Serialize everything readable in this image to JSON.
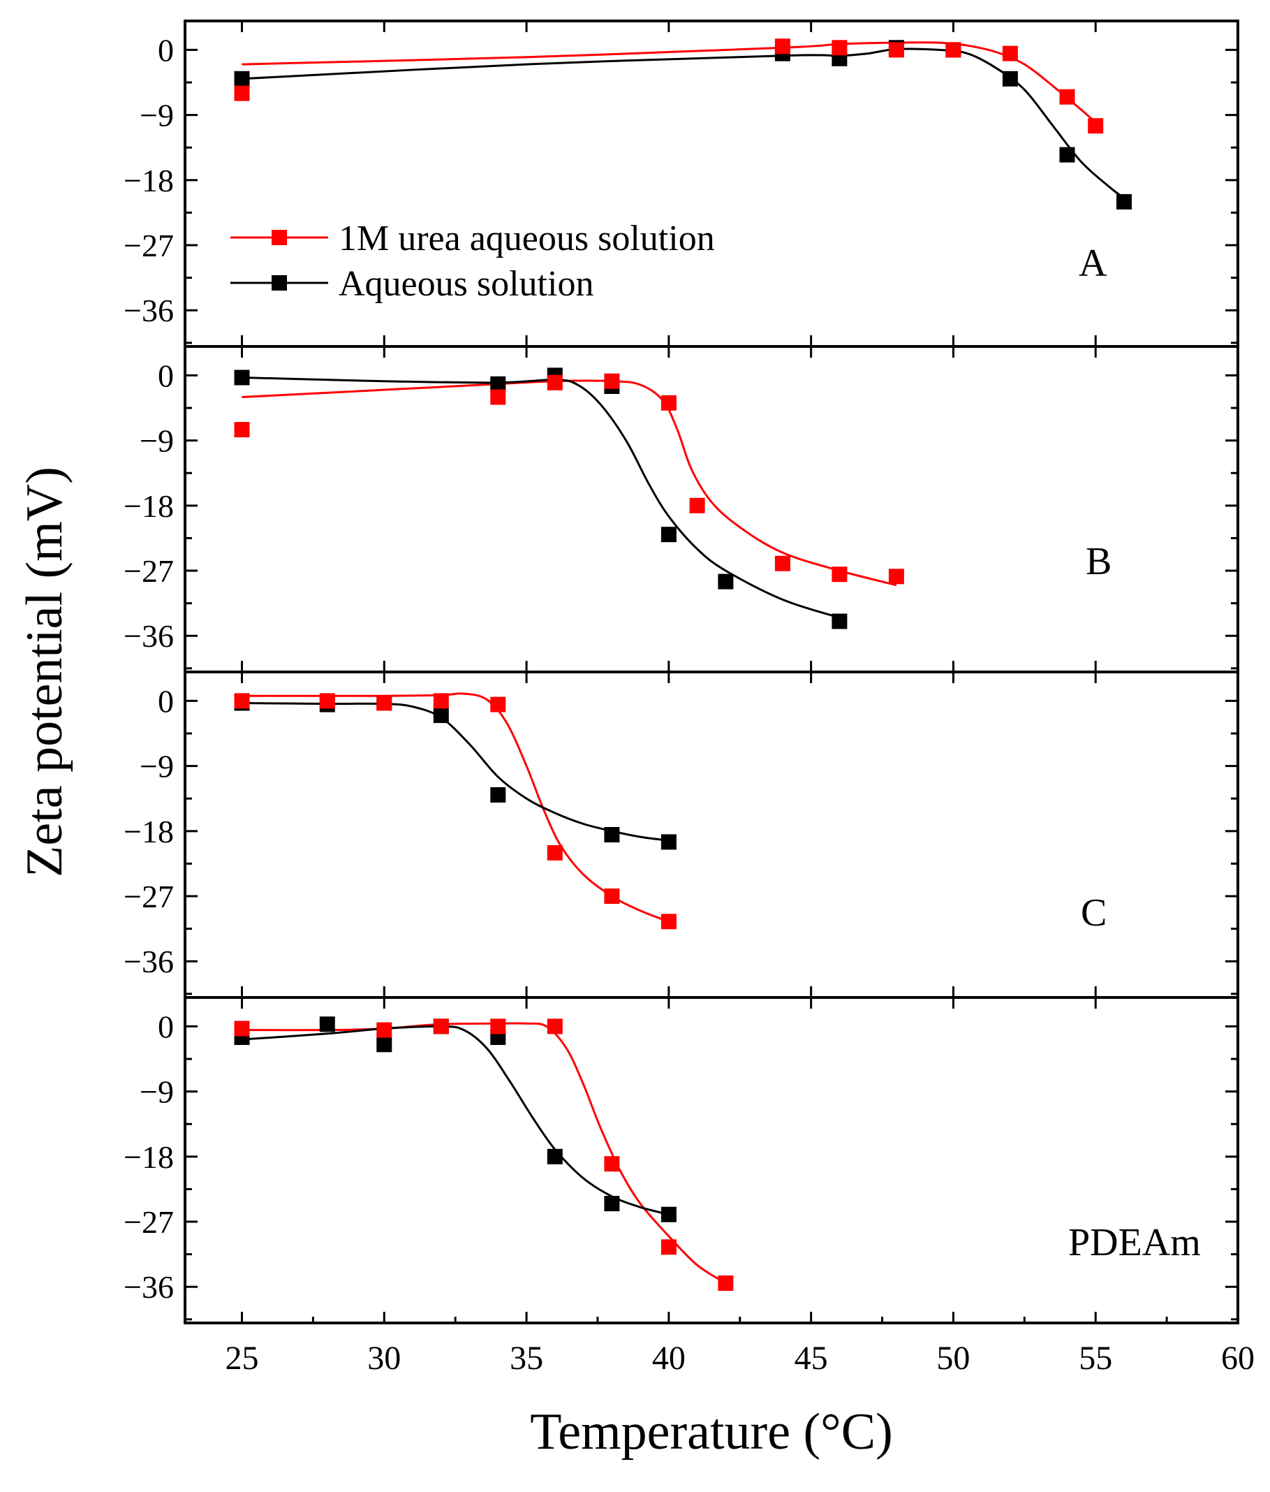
{
  "chart_data": {
    "type": "scatter",
    "xlabel": "Temperature (°C)",
    "ylabel": "Zeta potential (mV)",
    "xlim": [
      23,
      60
    ],
    "ylim": [
      -41,
      4
    ],
    "x_ticks": [
      25,
      30,
      35,
      40,
      45,
      50,
      55,
      60
    ],
    "x_tick_labels": [
      "25",
      "30",
      "35",
      "40",
      "45",
      "50",
      "55",
      "60"
    ],
    "y_ticks": [
      0,
      -9,
      -18,
      -27,
      -36
    ],
    "y_tick_labels": [
      "0",
      "−9",
      "−18",
      "−27",
      "−36"
    ],
    "grid": false,
    "legend": {
      "placement": "panel A, left",
      "entries": [
        {
          "name": "1M urea aqueous solution",
          "color": "#ff0000"
        },
        {
          "name": "Aqueous solution",
          "color": "#000000"
        }
      ]
    },
    "panels": [
      {
        "label": "A",
        "series": [
          {
            "name": "1M urea aqueous solution",
            "color": "#ff0000",
            "points": [
              [
                25,
                -6
              ],
              [
                44,
                0.5
              ],
              [
                46,
                0.3
              ],
              [
                48,
                0
              ],
              [
                50,
                0
              ],
              [
                52,
                -0.5
              ],
              [
                54,
                -6.5
              ],
              [
                55,
                -10.5
              ]
            ],
            "curve": [
              [
                25,
                -2
              ],
              [
                35,
                -1
              ],
              [
                44,
                0.3
              ],
              [
                46,
                0.8
              ],
              [
                48,
                1
              ],
              [
                49.5,
                1
              ],
              [
                50.5,
                0.6
              ],
              [
                51.5,
                -0.3
              ],
              [
                52.5,
                -2
              ],
              [
                53.5,
                -5
              ],
              [
                54.5,
                -8.3
              ],
              [
                55,
                -10
              ]
            ]
          },
          {
            "name": "Aqueous solution",
            "color": "#000000",
            "points": [
              [
                25,
                -4
              ],
              [
                44,
                -0.5
              ],
              [
                46,
                -1.2
              ],
              [
                48,
                0.3
              ],
              [
                50,
                0
              ],
              [
                52,
                -4
              ],
              [
                54,
                -14.5
              ],
              [
                56,
                -21
              ]
            ],
            "curve": [
              [
                25,
                -4
              ],
              [
                35,
                -2
              ],
              [
                44,
                -0.8
              ],
              [
                46,
                -0.8
              ],
              [
                47,
                -0.5
              ],
              [
                48,
                0.1
              ],
              [
                49.5,
                0
              ],
              [
                50.5,
                -0.5
              ],
              [
                51.5,
                -2.5
              ],
              [
                52.5,
                -5.5
              ],
              [
                53.5,
                -10.5
              ],
              [
                54.5,
                -15.5
              ],
              [
                55.5,
                -19
              ],
              [
                56,
                -20.5
              ]
            ]
          }
        ]
      },
      {
        "label": "B",
        "series": [
          {
            "name": "1M urea aqueous solution",
            "color": "#ff0000",
            "points": [
              [
                25,
                -7.5
              ],
              [
                34,
                -3
              ],
              [
                36,
                -1
              ],
              [
                38,
                -0.8
              ],
              [
                40,
                -3.8
              ],
              [
                41,
                -18
              ],
              [
                44,
                -26
              ],
              [
                46,
                -27.5
              ],
              [
                48,
                -27.8
              ]
            ],
            "curve": [
              [
                25,
                -3
              ],
              [
                30,
                -2
              ],
              [
                34,
                -1.2
              ],
              [
                36,
                -0.8
              ],
              [
                38,
                -0.8
              ],
              [
                39,
                -1.3
              ],
              [
                39.8,
                -3.5
              ],
              [
                40.3,
                -7.5
              ],
              [
                40.8,
                -13
              ],
              [
                41.5,
                -17.5
              ],
              [
                42.5,
                -21
              ],
              [
                44,
                -24.5
              ],
              [
                46,
                -27
              ],
              [
                48,
                -29
              ]
            ]
          },
          {
            "name": "Aqueous solution",
            "color": "#000000",
            "points": [
              [
                25,
                -0.3
              ],
              [
                34,
                -1.2
              ],
              [
                36,
                0
              ],
              [
                38,
                -1.5
              ],
              [
                40,
                -22
              ],
              [
                42,
                -28.5
              ],
              [
                46,
                -34
              ]
            ],
            "curve": [
              [
                25,
                -0.3
              ],
              [
                30,
                -0.8
              ],
              [
                34,
                -1
              ],
              [
                36,
                -0.6
              ],
              [
                36.8,
                -1.3
              ],
              [
                37.6,
                -4
              ],
              [
                38.5,
                -9
              ],
              [
                39.3,
                -15
              ],
              [
                40,
                -19.5
              ],
              [
                41,
                -24
              ],
              [
                42,
                -27
              ],
              [
                44,
                -31
              ],
              [
                46,
                -33.5
              ]
            ]
          }
        ]
      },
      {
        "label": "C",
        "series": [
          {
            "name": "1M urea aqueous solution",
            "color": "#ff0000",
            "points": [
              [
                25,
                0
              ],
              [
                28,
                0
              ],
              [
                30,
                -0.3
              ],
              [
                32,
                0
              ],
              [
                34,
                -0.5
              ],
              [
                36,
                -21
              ],
              [
                38,
                -27
              ],
              [
                40,
                -30.5
              ]
            ],
            "curve": [
              [
                25,
                0.7
              ],
              [
                28,
                0.7
              ],
              [
                30,
                0.7
              ],
              [
                32,
                0.8
              ],
              [
                32.8,
                1
              ],
              [
                33.6,
                0.2
              ],
              [
                34.3,
                -3
              ],
              [
                35,
                -9
              ],
              [
                35.6,
                -15
              ],
              [
                36.2,
                -20
              ],
              [
                37,
                -24
              ],
              [
                38,
                -27
              ],
              [
                39,
                -29
              ],
              [
                40,
                -30.5
              ]
            ]
          },
          {
            "name": "Aqueous solution",
            "color": "#000000",
            "points": [
              [
                25,
                -0.3
              ],
              [
                28,
                -0.5
              ],
              [
                30,
                -0.3
              ],
              [
                32,
                -2
              ],
              [
                34,
                -13
              ],
              [
                38,
                -18.5
              ],
              [
                40,
                -19.5
              ]
            ],
            "curve": [
              [
                25,
                -0.3
              ],
              [
                28,
                -0.4
              ],
              [
                30,
                -0.4
              ],
              [
                31,
                -0.8
              ],
              [
                32,
                -2.3
              ],
              [
                33,
                -6
              ],
              [
                34,
                -10.5
              ],
              [
                35,
                -13.5
              ],
              [
                36,
                -15.5
              ],
              [
                37,
                -17
              ],
              [
                38,
                -18
              ],
              [
                39,
                -18.8
              ],
              [
                40,
                -19.3
              ]
            ]
          }
        ]
      },
      {
        "label": "PDEAm",
        "series": [
          {
            "name": "1M urea aqueous solution",
            "color": "#ff0000",
            "points": [
              [
                25,
                -0.3
              ],
              [
                30,
                -0.5
              ],
              [
                32,
                0
              ],
              [
                34,
                0
              ],
              [
                36,
                0
              ],
              [
                38,
                -19
              ],
              [
                40,
                -30.5
              ],
              [
                42,
                -35.5
              ]
            ],
            "curve": [
              [
                25,
                -0.5
              ],
              [
                28,
                -0.5
              ],
              [
                30,
                -0.3
              ],
              [
                32,
                0.3
              ],
              [
                34,
                0.4
              ],
              [
                35,
                0.4
              ],
              [
                35.7,
                0
              ],
              [
                36.4,
                -3
              ],
              [
                37,
                -8
              ],
              [
                37.6,
                -14
              ],
              [
                38.3,
                -20
              ],
              [
                39,
                -24.5
              ],
              [
                40,
                -29
              ],
              [
                41,
                -33
              ],
              [
                42,
                -35.5
              ]
            ]
          },
          {
            "name": "Aqueous solution",
            "color": "#000000",
            "points": [
              [
                25,
                -1.5
              ],
              [
                28,
                0.3
              ],
              [
                30,
                -2.5
              ],
              [
                32,
                0
              ],
              [
                34,
                -1.5
              ],
              [
                36,
                -18
              ],
              [
                38,
                -24.5
              ],
              [
                40,
                -26
              ]
            ],
            "curve": [
              [
                25,
                -1.8
              ],
              [
                28,
                -1
              ],
              [
                30,
                -0.3
              ],
              [
                32,
                0
              ],
              [
                32.8,
                -0.5
              ],
              [
                33.6,
                -3
              ],
              [
                34.4,
                -7.5
              ],
              [
                35.2,
                -12.5
              ],
              [
                36,
                -17
              ],
              [
                37,
                -21
              ],
              [
                38,
                -23.5
              ],
              [
                39,
                -25
              ],
              [
                40,
                -26
              ]
            ]
          }
        ]
      }
    ]
  }
}
